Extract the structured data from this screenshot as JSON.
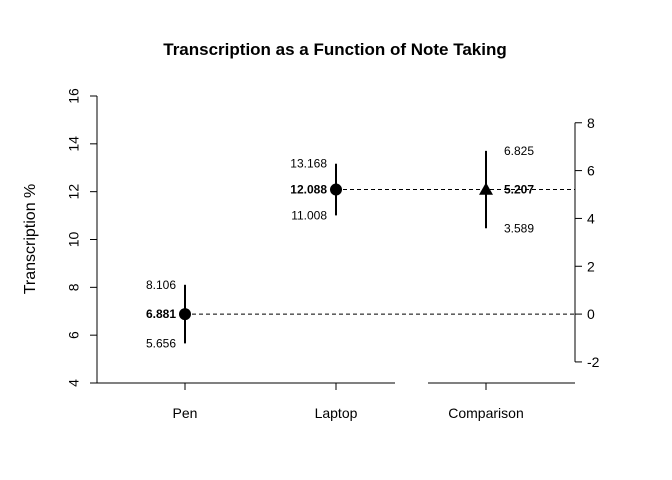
{
  "chart_data": {
    "type": "scatter",
    "title": "Transcription as a Function of Note Taking",
    "ylabel": "Transcription %",
    "xlabel": "",
    "categories": [
      "Pen",
      "Laptop",
      "Comparison"
    ],
    "left_axis": {
      "ylim": [
        4,
        16
      ],
      "ticks": [
        4,
        6,
        8,
        10,
        12,
        14,
        16
      ],
      "tick_labels": [
        "4",
        "6",
        "8",
        "10",
        "12",
        "14",
        "16"
      ]
    },
    "right_axis": {
      "ticks": [
        -2,
        0,
        2,
        4,
        6,
        8
      ],
      "tick_labels": [
        "-2",
        "0",
        "2",
        "4",
        "6",
        "8"
      ],
      "zero_aligned_to_left_value": 6.881
    },
    "points": [
      {
        "category": "Pen",
        "estimate": 6.881,
        "lower": 5.656,
        "upper": 8.106,
        "label_estimate": "6.881",
        "label_lower": "5.656",
        "label_upper": "8.106",
        "marker": "circle",
        "axis": "left"
      },
      {
        "category": "Laptop",
        "estimate": 12.088,
        "lower": 11.008,
        "upper": 13.168,
        "label_estimate": "12.088",
        "label_lower": "11.008",
        "label_upper": "13.168",
        "marker": "circle",
        "axis": "left"
      },
      {
        "category": "Comparison",
        "estimate": 5.207,
        "lower": 3.589,
        "upper": 6.825,
        "label_estimate": "5.207",
        "label_lower": "3.589",
        "label_upper": "6.825",
        "marker": "triangle",
        "axis": "right"
      }
    ],
    "reference_lines": [
      {
        "from": "Pen",
        "value": 6.881,
        "style": "dashed"
      },
      {
        "from": "Laptop",
        "value": 12.088,
        "style": "dashed"
      }
    ],
    "grid": false,
    "legend": "none"
  }
}
